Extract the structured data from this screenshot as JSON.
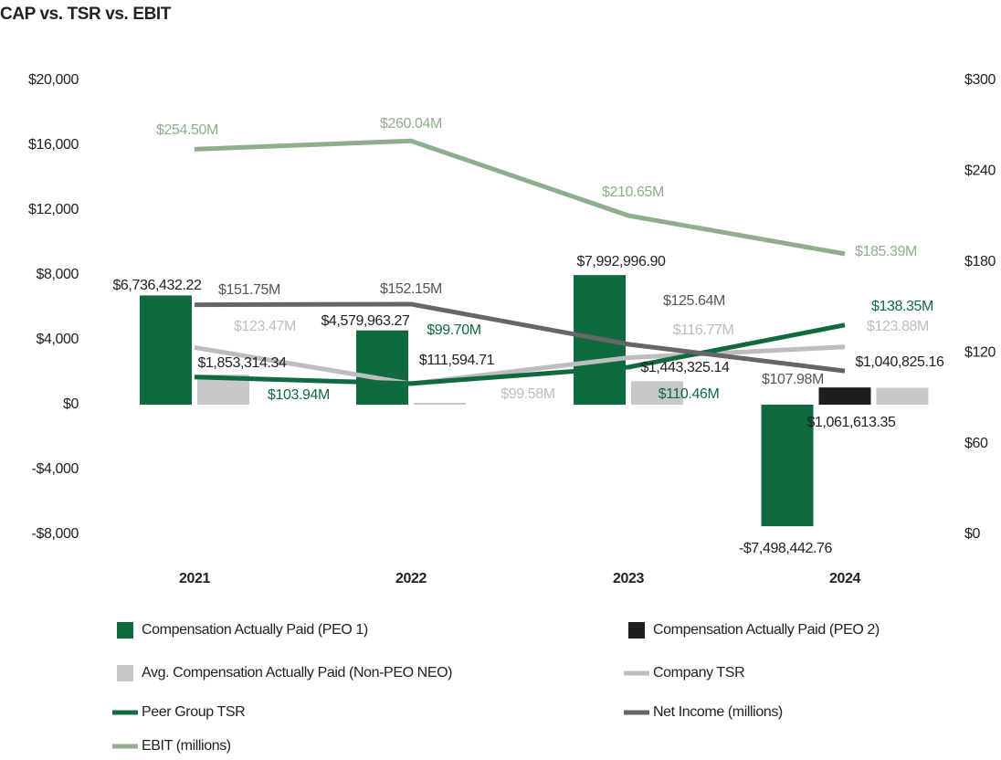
{
  "chart_data": {
    "type": "combo",
    "title": "CAP vs. TSR vs. EBIT",
    "categories": [
      "2021",
      "2022",
      "2023",
      "2024"
    ],
    "ylim": [
      -8000,
      20000
    ],
    "yticks": [
      {
        "value": -8000,
        "label": "-$8,000"
      },
      {
        "value": -4000,
        "label": "-$4,000"
      },
      {
        "value": 0,
        "label": "$0"
      },
      {
        "value": 4000,
        "label": "$4,000"
      },
      {
        "value": 8000,
        "label": "$8,000"
      },
      {
        "value": 12000,
        "label": "$12,000"
      },
      {
        "value": 16000,
        "label": "$16,000"
      },
      {
        "value": 20000,
        "label": "$20,000"
      }
    ],
    "y2lim": [
      0,
      300
    ],
    "y2ticks": [
      {
        "value": 0,
        "label": "$0"
      },
      {
        "value": 60,
        "label": "$60"
      },
      {
        "value": 120,
        "label": "$120"
      },
      {
        "value": 180,
        "label": "$180"
      },
      {
        "value": 240,
        "label": "$240"
      },
      {
        "value": 300,
        "label": "$300"
      }
    ],
    "series": [
      {
        "name": "Compensation Actually Paid (PEO 1)",
        "type": "bar",
        "color": "#0f6b3f",
        "values": [
          6736.43222,
          4579.96327,
          7992.9969,
          -7498.44276
        ],
        "value_labels": [
          "$6,736,432.22",
          "$4,579,963.27",
          "$7,992,996.90",
          "-$7,498,442.76"
        ]
      },
      {
        "name": "Compensation Actually Paid (PEO 2)",
        "type": "bar",
        "color": "#1e1e1e",
        "values": [
          null,
          null,
          null,
          1061.61335
        ],
        "value_labels": [
          null,
          null,
          null,
          "$1,061,613.35"
        ]
      },
      {
        "name": "Avg. Compensation Actually Paid (Non-PEO NEO)",
        "type": "bar",
        "color": "#c8c8c8",
        "values": [
          1853.31434,
          111.59471,
          1443.32514,
          1040.82516
        ],
        "value_labels": [
          "$1,853,314.34",
          "$111,594.71",
          "$1,443,325.14",
          "$1,040,825.16"
        ]
      },
      {
        "name": "Company TSR",
        "type": "line",
        "axis": "y2",
        "color": "#bdbdbd",
        "values": [
          123.47,
          99.58,
          116.77,
          123.88
        ],
        "value_labels": [
          "$123.47M",
          "$99.58M",
          "$116.77M",
          "$123.88M"
        ]
      },
      {
        "name": "Peer Group TSR",
        "type": "line",
        "axis": "y2",
        "color": "#0f6b3f",
        "values": [
          103.94,
          99.7,
          110.46,
          138.35
        ],
        "value_labels": [
          "$103.94M",
          "$99.70M",
          "$110.46M",
          "$138.35M"
        ]
      },
      {
        "name": "Net Income (millions)",
        "type": "line",
        "axis": "y2",
        "color": "#666666",
        "values": [
          151.75,
          152.15,
          125.64,
          107.98
        ],
        "value_labels": [
          "$151.75M",
          "$152.15M",
          "$125.64M",
          "$107.98M"
        ]
      },
      {
        "name": "EBIT (millions)",
        "type": "line",
        "axis": "y2",
        "color": "#8fae8c",
        "values": [
          254.5,
          260.04,
          210.65,
          185.39
        ],
        "value_labels": [
          "$254.50M",
          "$260.04M",
          "$210.65M",
          "$185.39M"
        ]
      }
    ]
  }
}
